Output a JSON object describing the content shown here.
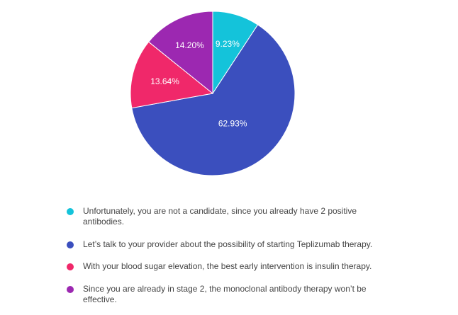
{
  "chart_data": {
    "type": "pie",
    "slices": [
      {
        "label": "Unfortunately, you are not a candidate, since you already have 2 positive antibodies.",
        "value": 9.23,
        "display": "9.23%",
        "color": "#14c3da"
      },
      {
        "label": "Let’s talk to your provider about the possibility of starting Teplizumab therapy.",
        "value": 62.93,
        "display": "62.93%",
        "color": "#3b4fbe"
      },
      {
        "label": "With your blood sugar elevation, the best early intervention is insulin therapy.",
        "value": 13.64,
        "display": "13.64%",
        "color": "#f0286a"
      },
      {
        "label": "Since you are already in stage 2, the monoclonal antibody therapy won’t be effective.",
        "value": 14.2,
        "display": "14.20%",
        "color": "#9c28b1"
      }
    ],
    "legend_position": "bottom",
    "start_angle": "top (12 o'clock), clockwise"
  }
}
